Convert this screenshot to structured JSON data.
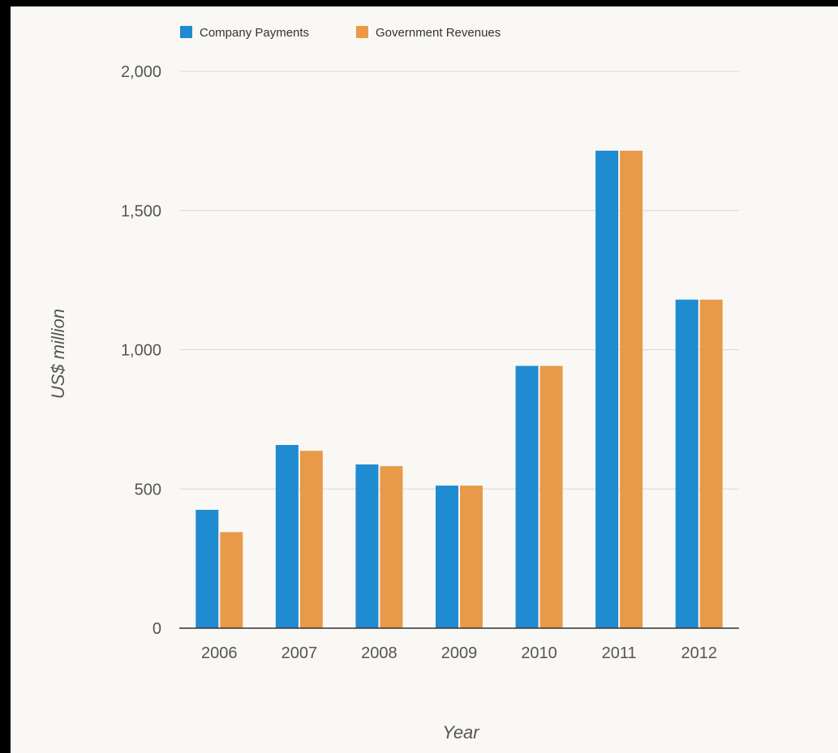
{
  "chart_data": {
    "type": "bar",
    "categories": [
      "2006",
      "2007",
      "2008",
      "2009",
      "2010",
      "2011",
      "2012"
    ],
    "series": [
      {
        "name": "Company Payments",
        "color": "#1f8bd0",
        "values": [
          425,
          658,
          588,
          512,
          942,
          1715,
          1180
        ]
      },
      {
        "name": "Government Revenues",
        "color": "#e89a48",
        "values": [
          345,
          637,
          582,
          512,
          942,
          1715,
          1180
        ]
      }
    ],
    "xlabel": "Year",
    "ylabel": "US$ million",
    "ylim": [
      0,
      2000
    ],
    "yticks": [
      {
        "value": 0,
        "label": "0"
      },
      {
        "value": 500,
        "label": "500"
      },
      {
        "value": 1000,
        "label": "1,000"
      },
      {
        "value": 1500,
        "label": "1,500"
      },
      {
        "value": 2000,
        "label": "2,000"
      }
    ],
    "grid": true,
    "legend_position": "top-left"
  }
}
